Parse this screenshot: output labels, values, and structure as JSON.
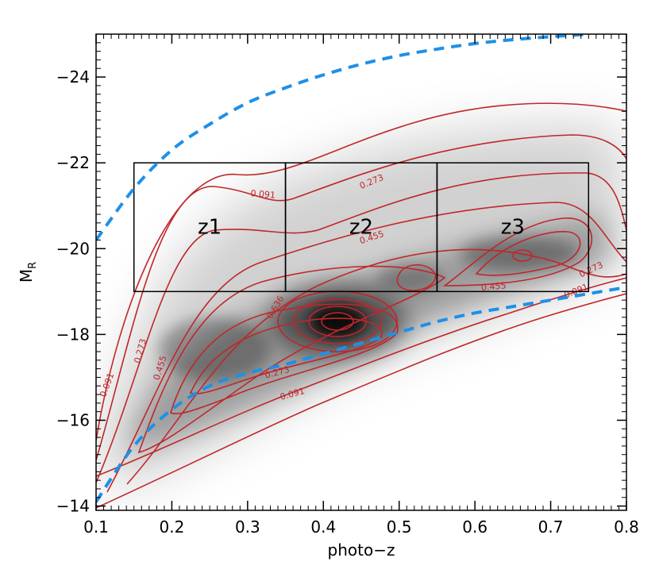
{
  "chart_data": {
    "type": "heatmap",
    "xlabel": "photo−z",
    "ylabel": "M",
    "ylabel_sub": "R",
    "xlim": [
      0.1,
      0.8
    ],
    "ylim": [
      -13.9,
      -25.0
    ],
    "x_ticks": [
      0.1,
      0.2,
      0.3,
      0.4,
      0.5,
      0.6,
      0.7,
      0.8
    ],
    "x_tick_labels": [
      "0.1",
      "0.2",
      "0.3",
      "0.4",
      "0.5",
      "0.6",
      "0.7",
      "0.8"
    ],
    "y_ticks": [
      -14,
      -16,
      -18,
      -20,
      -22,
      -24
    ],
    "y_tick_labels": [
      "−14",
      "−16",
      "−18",
      "−20",
      "−22",
      "−24"
    ],
    "colors": {
      "contour": "#c0262a",
      "limit_curve": "#1e90e8",
      "box": "#000000"
    },
    "density_peak": {
      "x": 0.41,
      "y": -18.3
    },
    "redshift_bins": [
      {
        "label": "z1",
        "x": [
          0.15,
          0.35
        ],
        "y": [
          -19.0,
          -22.0
        ]
      },
      {
        "label": "z2",
        "x": [
          0.35,
          0.55
        ],
        "y": [
          -19.0,
          -22.0
        ]
      },
      {
        "label": "z3",
        "x": [
          0.55,
          0.75
        ],
        "y": [
          -19.0,
          -22.0
        ]
      }
    ],
    "upper_limit_curve": {
      "x": [
        0.1,
        0.15,
        0.2,
        0.25,
        0.3,
        0.35,
        0.4,
        0.45,
        0.5,
        0.55,
        0.6,
        0.65,
        0.7,
        0.75
      ],
      "y": [
        -20.2,
        -21.4,
        -22.3,
        -22.9,
        -23.4,
        -23.75,
        -24.05,
        -24.3,
        -24.5,
        -24.65,
        -24.78,
        -24.87,
        -24.94,
        -25.0
      ]
    },
    "lower_limit_curve": {
      "x": [
        0.1,
        0.15,
        0.2,
        0.25,
        0.3,
        0.35,
        0.4,
        0.45,
        0.5,
        0.55,
        0.6,
        0.65,
        0.7,
        0.75,
        0.8
      ],
      "y": [
        -14.1,
        -15.4,
        -16.25,
        -16.8,
        -17.1,
        -17.3,
        -17.55,
        -17.8,
        -18.05,
        -18.3,
        -18.5,
        -18.65,
        -18.8,
        -18.95,
        -19.1
      ]
    },
    "contour_level_labels": [
      {
        "text": "0.091",
        "x": 0.32,
        "y": -21.2,
        "angle": 5
      },
      {
        "text": "0.273",
        "x": 0.465,
        "y": -21.5,
        "angle": -22
      },
      {
        "text": "0.455",
        "x": 0.465,
        "y": -20.2,
        "angle": -18
      },
      {
        "text": "0.455",
        "x": 0.625,
        "y": -19.05,
        "angle": -5
      },
      {
        "text": "0.273",
        "x": 0.755,
        "y": -19.45,
        "angle": -25
      },
      {
        "text": "0.091",
        "x": 0.735,
        "y": -18.95,
        "angle": -22
      },
      {
        "text": "0.091",
        "x": 0.118,
        "y": -16.8,
        "angle": -70
      },
      {
        "text": "0.273",
        "x": 0.162,
        "y": -17.6,
        "angle": -75
      },
      {
        "text": "0.455",
        "x": 0.188,
        "y": -17.2,
        "angle": -72
      },
      {
        "text": "0.636",
        "x": 0.34,
        "y": -18.6,
        "angle": -60
      },
      {
        "text": "0.273",
        "x": 0.34,
        "y": -17.05,
        "angle": -15
      },
      {
        "text": "0.091",
        "x": 0.36,
        "y": -16.55,
        "angle": -15
      }
    ]
  }
}
